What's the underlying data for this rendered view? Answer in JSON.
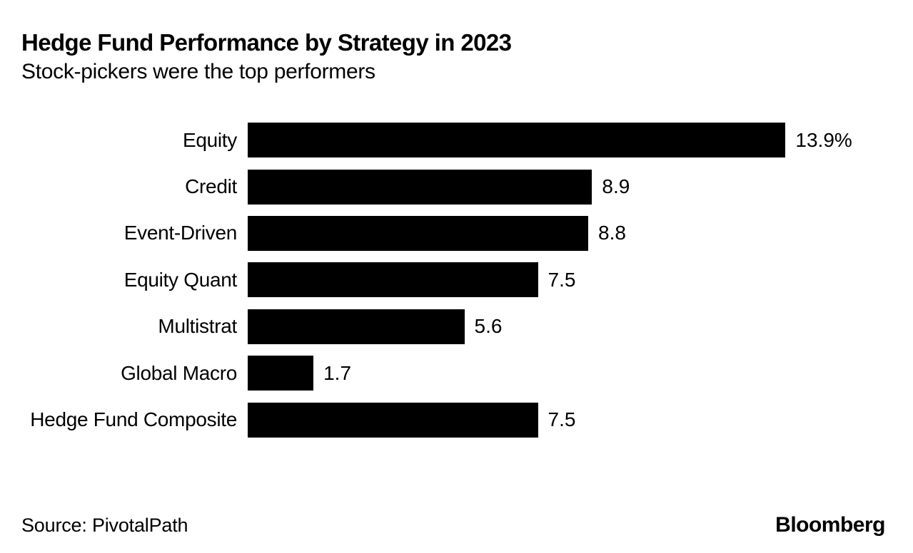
{
  "chart_data": {
    "type": "bar",
    "orientation": "horizontal",
    "title": "Hedge Fund Performance by Strategy in 2023",
    "subtitle": "Stock-pickers were the top performers",
    "categories": [
      "Equity",
      "Credit",
      "Event-Driven",
      "Equity Quant",
      "Multistrat",
      "Global Macro",
      "Hedge Fund Composite"
    ],
    "values": [
      13.9,
      8.9,
      8.8,
      7.5,
      5.6,
      1.7,
      7.5
    ],
    "value_labels": [
      "13.9%",
      "8.9",
      "8.8",
      "7.5",
      "5.6",
      "1.7",
      "7.5"
    ],
    "unit": "%",
    "xlim": [
      0,
      13.9
    ],
    "bar_color": "#000000",
    "background_color": "#ffffff",
    "text_color": "#000000",
    "grid": false,
    "legend": false,
    "value_label_position": "right-of-bar",
    "category_label_position": "left-of-bar"
  },
  "footer": {
    "source": "Source: PivotalPath",
    "brand": "Bloomberg"
  }
}
